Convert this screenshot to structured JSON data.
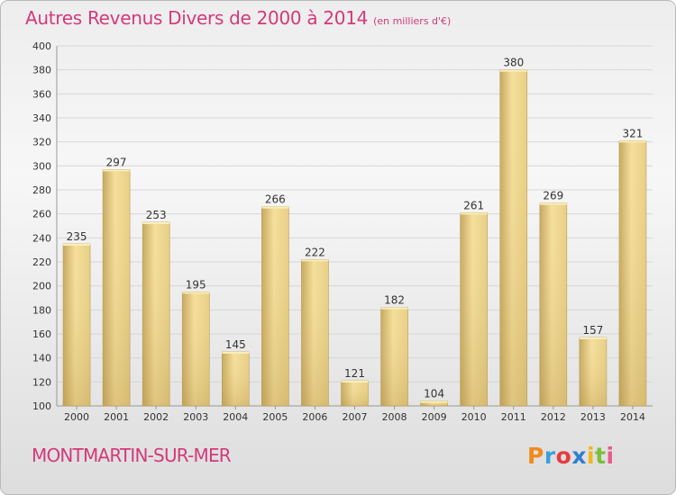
{
  "header": {
    "title": "Autres Revenus Divers de 2000 à 2014",
    "unit": "(en milliers d'€)"
  },
  "footer": {
    "place": "MONTMARTIN-SUR-MER",
    "logo_text": "Proxiti"
  },
  "colors": {
    "title": "#d33a7a",
    "bar_light": "#f3dc98",
    "bar_dark": "#c8aa62",
    "grid": "#d6d6d6"
  },
  "chart_data": {
    "type": "bar",
    "title": "Autres Revenus Divers de 2000 à 2014",
    "xlabel": "",
    "ylabel": "",
    "categories": [
      "2000",
      "2001",
      "2002",
      "2003",
      "2004",
      "2005",
      "2006",
      "2007",
      "2008",
      "2009",
      "2010",
      "2011",
      "2012",
      "2013",
      "2014"
    ],
    "values": [
      235,
      297,
      253,
      195,
      145,
      266,
      222,
      121,
      182,
      104,
      261,
      380,
      269,
      157,
      321
    ],
    "ylim": [
      100,
      400
    ],
    "yticks": [
      100,
      120,
      140,
      160,
      180,
      200,
      220,
      240,
      260,
      280,
      300,
      320,
      340,
      360,
      380,
      400
    ],
    "grid": true,
    "data_labels": true
  }
}
